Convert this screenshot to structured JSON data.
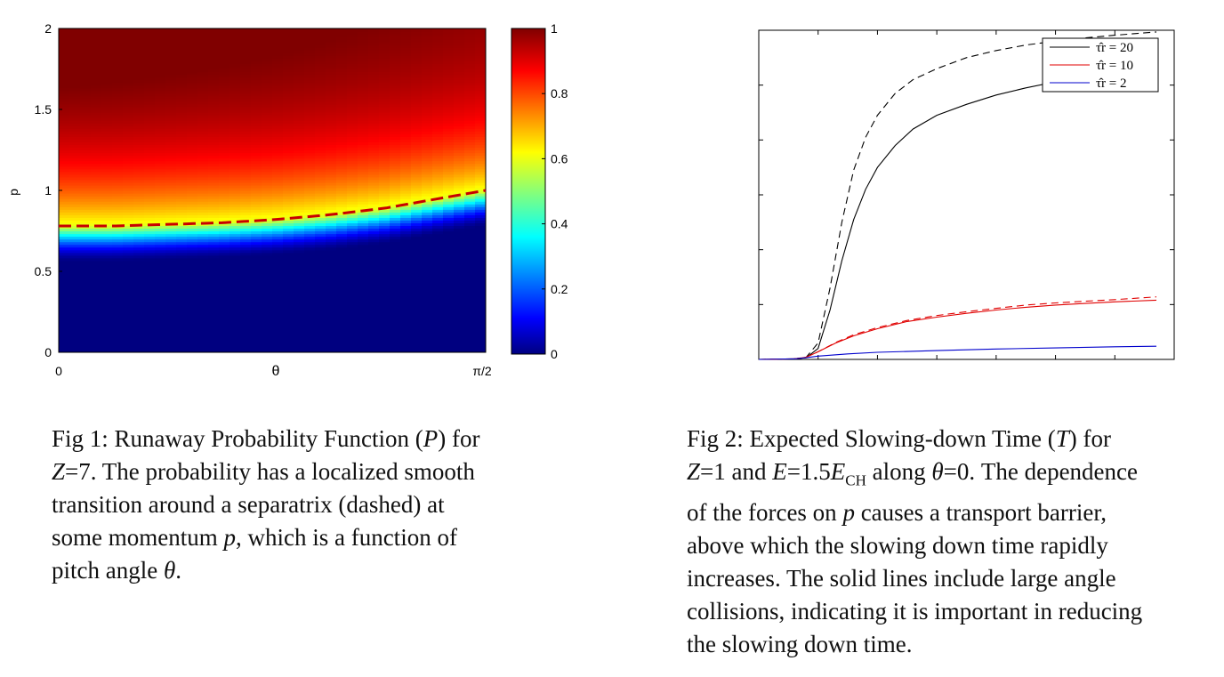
{
  "chart_data": [
    {
      "type": "heatmap",
      "title": "",
      "xlabel": "θ",
      "ylabel": "p",
      "x_ticks": [
        "0",
        "π/2"
      ],
      "x_range": [
        0,
        1.5708
      ],
      "y_ticks": [
        "0",
        "0.5",
        "1",
        "1.5",
        "2"
      ],
      "y_range": [
        0,
        2
      ],
      "colorbar": {
        "ticks": [
          "0",
          "0.2",
          "0.4",
          "0.6",
          "0.8",
          "1"
        ],
        "range": [
          0,
          1
        ],
        "colormap": "jet"
      },
      "separatrix": {
        "style": "dashed",
        "color": "#c00000",
        "theta": [
          0,
          0.2,
          0.4,
          0.6,
          0.8,
          1.0,
          1.2,
          1.4,
          1.5708
        ],
        "p": [
          0.78,
          0.78,
          0.79,
          0.8,
          0.82,
          0.85,
          0.89,
          0.95,
          1.0
        ]
      }
    },
    {
      "type": "line",
      "title": "",
      "xlabel": "",
      "ylabel": "",
      "x_range": [
        0,
        7
      ],
      "y_range": [
        0,
        6
      ],
      "legend": {
        "position": "top-right",
        "entries": [
          "τ̂r = 20",
          "τ̂r = 10",
          "τ̂r = 2"
        ]
      },
      "series": [
        {
          "name": "τ̂r = 20",
          "color": "#000000",
          "style": "solid",
          "x": [
            0,
            0.6,
            0.8,
            1.0,
            1.2,
            1.4,
            1.6,
            1.8,
            2.0,
            2.3,
            2.6,
            3.0,
            3.5,
            4.0,
            4.5,
            5.0,
            5.5,
            6.0,
            6.7
          ],
          "y": [
            0,
            0.01,
            0.03,
            0.2,
            0.9,
            1.8,
            2.55,
            3.1,
            3.5,
            3.9,
            4.2,
            4.45,
            4.65,
            4.82,
            4.95,
            5.06,
            5.15,
            5.23,
            5.32
          ]
        },
        {
          "name": "",
          "color": "#000000",
          "style": "dashed",
          "x": [
            0,
            0.6,
            0.8,
            1.0,
            1.2,
            1.4,
            1.6,
            1.8,
            2.0,
            2.3,
            2.6,
            3.0,
            3.5,
            4.0,
            4.5,
            5.0,
            5.5,
            6.0,
            6.7
          ],
          "y": [
            0,
            0.01,
            0.04,
            0.3,
            1.3,
            2.5,
            3.45,
            4.05,
            4.45,
            4.85,
            5.1,
            5.3,
            5.5,
            5.63,
            5.73,
            5.8,
            5.86,
            5.91,
            5.97
          ]
        },
        {
          "name": "τ̂r = 10",
          "color": "#e00000",
          "style": "solid",
          "x": [
            0,
            0.6,
            0.8,
            1.0,
            1.3,
            1.6,
            2.0,
            2.5,
            3.0,
            3.5,
            4.0,
            4.5,
            5.0,
            5.5,
            6.0,
            6.7
          ],
          "y": [
            0,
            0.01,
            0.04,
            0.14,
            0.3,
            0.43,
            0.56,
            0.69,
            0.77,
            0.84,
            0.9,
            0.95,
            0.99,
            1.02,
            1.05,
            1.08
          ]
        },
        {
          "name": "",
          "color": "#e00000",
          "style": "dashed",
          "x": [
            0,
            0.6,
            0.8,
            1.0,
            1.3,
            1.6,
            2.0,
            2.5,
            3.0,
            3.5,
            4.0,
            4.5,
            5.0,
            5.5,
            6.0,
            6.7
          ],
          "y": [
            0,
            0.01,
            0.04,
            0.14,
            0.31,
            0.45,
            0.58,
            0.71,
            0.8,
            0.87,
            0.93,
            0.99,
            1.03,
            1.06,
            1.09,
            1.14
          ]
        },
        {
          "name": "τ̂r = 2",
          "color": "#0000cc",
          "style": "solid",
          "x": [
            0,
            0.6,
            0.8,
            1.0,
            1.5,
            2.0,
            3.0,
            4.0,
            5.0,
            6.0,
            6.7
          ],
          "y": [
            0,
            0.01,
            0.03,
            0.06,
            0.1,
            0.13,
            0.16,
            0.19,
            0.21,
            0.23,
            0.24
          ]
        }
      ]
    }
  ],
  "captions": {
    "fig1": [
      "Fig 1: Runaway Probability Function (P) for",
      "Z=7.  The probability has a localized smooth",
      "transition around a separatrix (dashed) at",
      "some momentum p, which is a function of",
      "pitch angle θ."
    ],
    "fig2": [
      "Fig 2: Expected Slowing-down Time (T) for",
      "Z=1 and E=1.5E_CH along θ=0.  The dependence",
      "of the forces on p causes a transport barrier,",
      "above which the slowing down time rapidly",
      "increases.  The solid lines include large angle",
      "collisions, indicating it is  important in reducing",
      "the slowing down time."
    ]
  }
}
